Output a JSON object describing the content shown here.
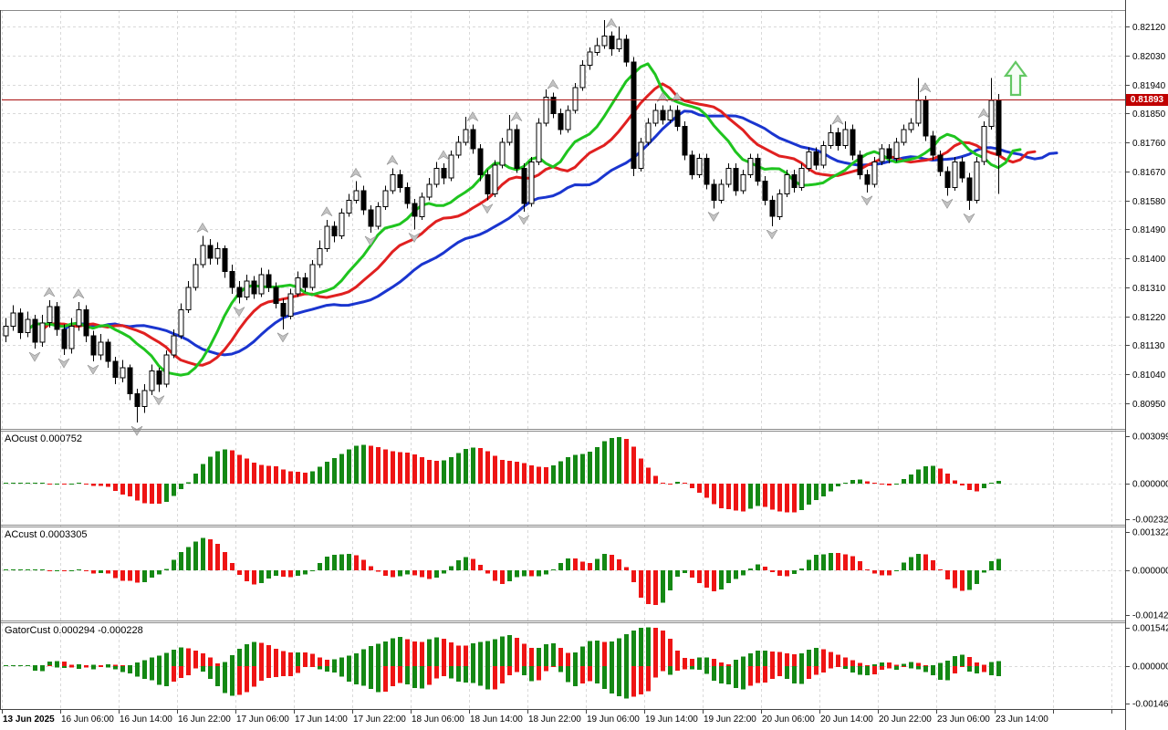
{
  "main_chart": {
    "price_line_value": "0.81893",
    "price_axis_labels": [
      "0.82120",
      "0.82030",
      "0.81940",
      "0.81850",
      "0.81760",
      "0.81670",
      "0.81580",
      "0.81490",
      "0.81400",
      "0.81310",
      "0.81220",
      "0.81130",
      "0.81040",
      "0.80950"
    ]
  },
  "panes": [
    {
      "name": "AOcust",
      "value": "0.000752",
      "scale_labels": [
        "0.003099",
        "0.000000",
        "-0.002324"
      ]
    },
    {
      "name": "ACcust",
      "value": "0.0003305",
      "scale_labels": [
        "0.0013227",
        "0.0000000",
        "-0.0014232"
      ]
    },
    {
      "name": "GatorCust",
      "value": "0.000294 -0.000228",
      "scale_labels": [
        "0.001542",
        "0.000000",
        "-0.001467"
      ]
    }
  ],
  "time_axis": {
    "labels": [
      "13 Jun 2025",
      "16 Jun 06:00",
      "16 Jun 14:00",
      "16 Jun 22:00",
      "17 Jun 06:00",
      "17 Jun 14:00",
      "17 Jun 22:00",
      "18 Jun 06:00",
      "18 Jun 14:00",
      "18 Jun 22:00",
      "19 Jun 06:00",
      "19 Jun 14:00",
      "19 Jun 22:00",
      "20 Jun 06:00",
      "20 Jun 14:00",
      "20 Jun 22:00",
      "23 Jun 06:00",
      "23 Jun 14:00"
    ]
  },
  "chart_data": {
    "type": "candlestick_with_indicators",
    "title": "",
    "price_base": 0.8,
    "price_unit": 1e-05,
    "main_axis_range": [
      0.80871,
      0.82171
    ],
    "current_price_line": 0.81893,
    "candles": [
      [
        1160,
        1215,
        1140,
        1190
      ],
      [
        1190,
        1255,
        1175,
        1230
      ],
      [
        1230,
        1245,
        1150,
        1170
      ],
      [
        1170,
        1235,
        1155,
        1210
      ],
      [
        1210,
        1225,
        1120,
        1140
      ],
      [
        1140,
        1225,
        1125,
        1200
      ],
      [
        1200,
        1270,
        1185,
        1250
      ],
      [
        1250,
        1265,
        1160,
        1180
      ],
      [
        1180,
        1195,
        1100,
        1120
      ],
      [
        1120,
        1215,
        1105,
        1190
      ],
      [
        1190,
        1265,
        1175,
        1240
      ],
      [
        1240,
        1255,
        1140,
        1160
      ],
      [
        1160,
        1175,
        1080,
        1100
      ],
      [
        1100,
        1165,
        1085,
        1140
      ],
      [
        1140,
        1150,
        1060,
        1080
      ],
      [
        1080,
        1095,
        1010,
        1030
      ],
      [
        1030,
        1085,
        1015,
        1060
      ],
      [
        1060,
        1070,
        960,
        980
      ],
      [
        980,
        995,
        890,
        940
      ],
      [
        940,
        1010,
        920,
        990
      ],
      [
        990,
        1070,
        975,
        1050
      ],
      [
        1050,
        1060,
        985,
        1010
      ],
      [
        1010,
        1115,
        1000,
        1100
      ],
      [
        1100,
        1180,
        1090,
        1160
      ],
      [
        1160,
        1260,
        1150,
        1240
      ],
      [
        1240,
        1330,
        1230,
        1310
      ],
      [
        1310,
        1400,
        1300,
        1380
      ],
      [
        1380,
        1470,
        1370,
        1440
      ],
      [
        1440,
        1460,
        1380,
        1400
      ],
      [
        1400,
        1450,
        1380,
        1430
      ],
      [
        1430,
        1440,
        1340,
        1360
      ],
      [
        1360,
        1380,
        1290,
        1310
      ],
      [
        1310,
        1330,
        1260,
        1280
      ],
      [
        1280,
        1350,
        1270,
        1330
      ],
      [
        1330,
        1345,
        1275,
        1290
      ],
      [
        1290,
        1370,
        1280,
        1350
      ],
      [
        1350,
        1365,
        1295,
        1310
      ],
      [
        1310,
        1325,
        1245,
        1260
      ],
      [
        1260,
        1275,
        1180,
        1220
      ],
      [
        1220,
        1305,
        1210,
        1290
      ],
      [
        1290,
        1360,
        1280,
        1340
      ],
      [
        1340,
        1355,
        1295,
        1310
      ],
      [
        1310,
        1395,
        1300,
        1380
      ],
      [
        1380,
        1455,
        1370,
        1430
      ],
      [
        1430,
        1520,
        1420,
        1500
      ],
      [
        1500,
        1515,
        1450,
        1470
      ],
      [
        1470,
        1555,
        1460,
        1540
      ],
      [
        1540,
        1600,
        1530,
        1580
      ],
      [
        1580,
        1640,
        1570,
        1610
      ],
      [
        1610,
        1625,
        1535,
        1550
      ],
      [
        1550,
        1565,
        1480,
        1500
      ],
      [
        1500,
        1575,
        1490,
        1560
      ],
      [
        1560,
        1625,
        1550,
        1610
      ],
      [
        1610,
        1680,
        1600,
        1660
      ],
      [
        1660,
        1675,
        1605,
        1620
      ],
      [
        1620,
        1635,
        1555,
        1570
      ],
      [
        1570,
        1585,
        1490,
        1530
      ],
      [
        1530,
        1605,
        1520,
        1590
      ],
      [
        1590,
        1650,
        1580,
        1630
      ],
      [
        1630,
        1700,
        1620,
        1680
      ],
      [
        1680,
        1695,
        1630,
        1650
      ],
      [
        1650,
        1735,
        1640,
        1720
      ],
      [
        1720,
        1780,
        1710,
        1760
      ],
      [
        1760,
        1840,
        1750,
        1800
      ],
      [
        1800,
        1815,
        1725,
        1740
      ],
      [
        1740,
        1755,
        1640,
        1660
      ],
      [
        1660,
        1675,
        1580,
        1600
      ],
      [
        1600,
        1705,
        1590,
        1690
      ],
      [
        1690,
        1775,
        1680,
        1760
      ],
      [
        1760,
        1845,
        1750,
        1800
      ],
      [
        1800,
        1815,
        1665,
        1680
      ],
      [
        1680,
        1695,
        1545,
        1570
      ],
      [
        1570,
        1715,
        1560,
        1700
      ],
      [
        1700,
        1835,
        1690,
        1820
      ],
      [
        1820,
        1925,
        1810,
        1900
      ],
      [
        1900,
        1915,
        1835,
        1850
      ],
      [
        1850,
        1865,
        1785,
        1800
      ],
      [
        1800,
        1875,
        1790,
        1860
      ],
      [
        1860,
        1945,
        1850,
        1930
      ],
      [
        1930,
        2015,
        1920,
        2000
      ],
      [
        2000,
        2055,
        1985,
        2040
      ],
      [
        2040,
        2085,
        2030,
        2060
      ],
      [
        2060,
        2140,
        2050,
        2090
      ],
      [
        2090,
        2105,
        2030,
        2050
      ],
      [
        2050,
        2120,
        2040,
        2080
      ],
      [
        2080,
        2095,
        1995,
        2010
      ],
      [
        2010,
        2025,
        1655,
        1680
      ],
      [
        1680,
        1775,
        1670,
        1760
      ],
      [
        1760,
        1835,
        1750,
        1820
      ],
      [
        1820,
        1880,
        1810,
        1860
      ],
      [
        1860,
        1875,
        1815,
        1830
      ],
      [
        1830,
        1875,
        1820,
        1860
      ],
      [
        1860,
        1875,
        1795,
        1810
      ],
      [
        1810,
        1825,
        1705,
        1720
      ],
      [
        1720,
        1735,
        1645,
        1660
      ],
      [
        1660,
        1725,
        1650,
        1710
      ],
      [
        1710,
        1725,
        1615,
        1630
      ],
      [
        1630,
        1645,
        1555,
        1580
      ],
      [
        1580,
        1645,
        1570,
        1630
      ],
      [
        1630,
        1695,
        1620,
        1680
      ],
      [
        1680,
        1695,
        1595,
        1610
      ],
      [
        1610,
        1675,
        1600,
        1660
      ],
      [
        1660,
        1725,
        1650,
        1710
      ],
      [
        1710,
        1725,
        1625,
        1640
      ],
      [
        1640,
        1655,
        1565,
        1580
      ],
      [
        1580,
        1595,
        1500,
        1530
      ],
      [
        1530,
        1615,
        1520,
        1600
      ],
      [
        1600,
        1675,
        1590,
        1660
      ],
      [
        1660,
        1675,
        1605,
        1620
      ],
      [
        1620,
        1695,
        1610,
        1680
      ],
      [
        1680,
        1745,
        1670,
        1730
      ],
      [
        1730,
        1745,
        1675,
        1690
      ],
      [
        1690,
        1765,
        1680,
        1750
      ],
      [
        1750,
        1815,
        1740,
        1790
      ],
      [
        1790,
        1805,
        1735,
        1750
      ],
      [
        1750,
        1825,
        1740,
        1800
      ],
      [
        1800,
        1815,
        1705,
        1720
      ],
      [
        1720,
        1735,
        1645,
        1660
      ],
      [
        1660,
        1675,
        1605,
        1630
      ],
      [
        1630,
        1715,
        1620,
        1700
      ],
      [
        1700,
        1755,
        1690,
        1740
      ],
      [
        1740,
        1755,
        1695,
        1710
      ],
      [
        1710,
        1775,
        1700,
        1760
      ],
      [
        1760,
        1815,
        1750,
        1800
      ],
      [
        1800,
        1835,
        1790,
        1820
      ],
      [
        1820,
        1960,
        1810,
        1890
      ],
      [
        1890,
        1905,
        1765,
        1780
      ],
      [
        1780,
        1795,
        1705,
        1720
      ],
      [
        1720,
        1735,
        1655,
        1670
      ],
      [
        1670,
        1685,
        1595,
        1620
      ],
      [
        1620,
        1715,
        1610,
        1700
      ],
      [
        1700,
        1715,
        1635,
        1650
      ],
      [
        1650,
        1665,
        1550,
        1580
      ],
      [
        1580,
        1715,
        1570,
        1700
      ],
      [
        1700,
        1825,
        1690,
        1810
      ],
      [
        1810,
        1960,
        1800,
        1890
      ],
      [
        1890,
        1910,
        1600,
        1720
      ]
    ],
    "fractals_up": [
      6,
      10,
      27,
      44,
      48,
      53,
      60,
      64,
      70,
      75,
      83,
      90,
      92,
      114,
      126,
      134
    ],
    "fractals_down": [
      4,
      8,
      12,
      18,
      21,
      32,
      38,
      50,
      56,
      66,
      71,
      97,
      105,
      118,
      129,
      132
    ],
    "alligator": {
      "jaw": {
        "period": 13,
        "shift": 8,
        "color": "#1a35cf"
      },
      "teeth": {
        "period": 8,
        "shift": 5,
        "color": "#e02020"
      },
      "lips": {
        "period": 5,
        "shift": 3,
        "color": "#1fc41f"
      }
    },
    "oscillators": [
      {
        "name": "AOcust",
        "display_value": 0.000752,
        "axis_max": 0.003099,
        "axis_min": -0.002324
      },
      {
        "name": "ACcust",
        "display_value": 0.0003305,
        "axis_max": 0.0013227,
        "axis_min": -0.0014232
      },
      {
        "name": "GatorCust",
        "display_values": [
          0.000294,
          -0.000228
        ],
        "axis_max": 0.001542,
        "axis_min": -0.001467
      }
    ],
    "up_color": "#148814",
    "down_color": "#ee1414",
    "candle_colors": {
      "bull_fill": "#ffffff",
      "bear_fill": "#000000",
      "outline": "#000000"
    },
    "grid_color": "#d9d9d9",
    "border_color": "#8a8a8a",
    "frame_color": "#444444",
    "price_line_color": "#aa1111",
    "tag": {
      "bg": "#c00000",
      "text": "#ffffff"
    },
    "fractal_color": "#c2c2c2",
    "fractal_edge": "#909090",
    "signal_arrow_color": "#63c763",
    "signal_arrow_fill": "#f6fdf6"
  }
}
